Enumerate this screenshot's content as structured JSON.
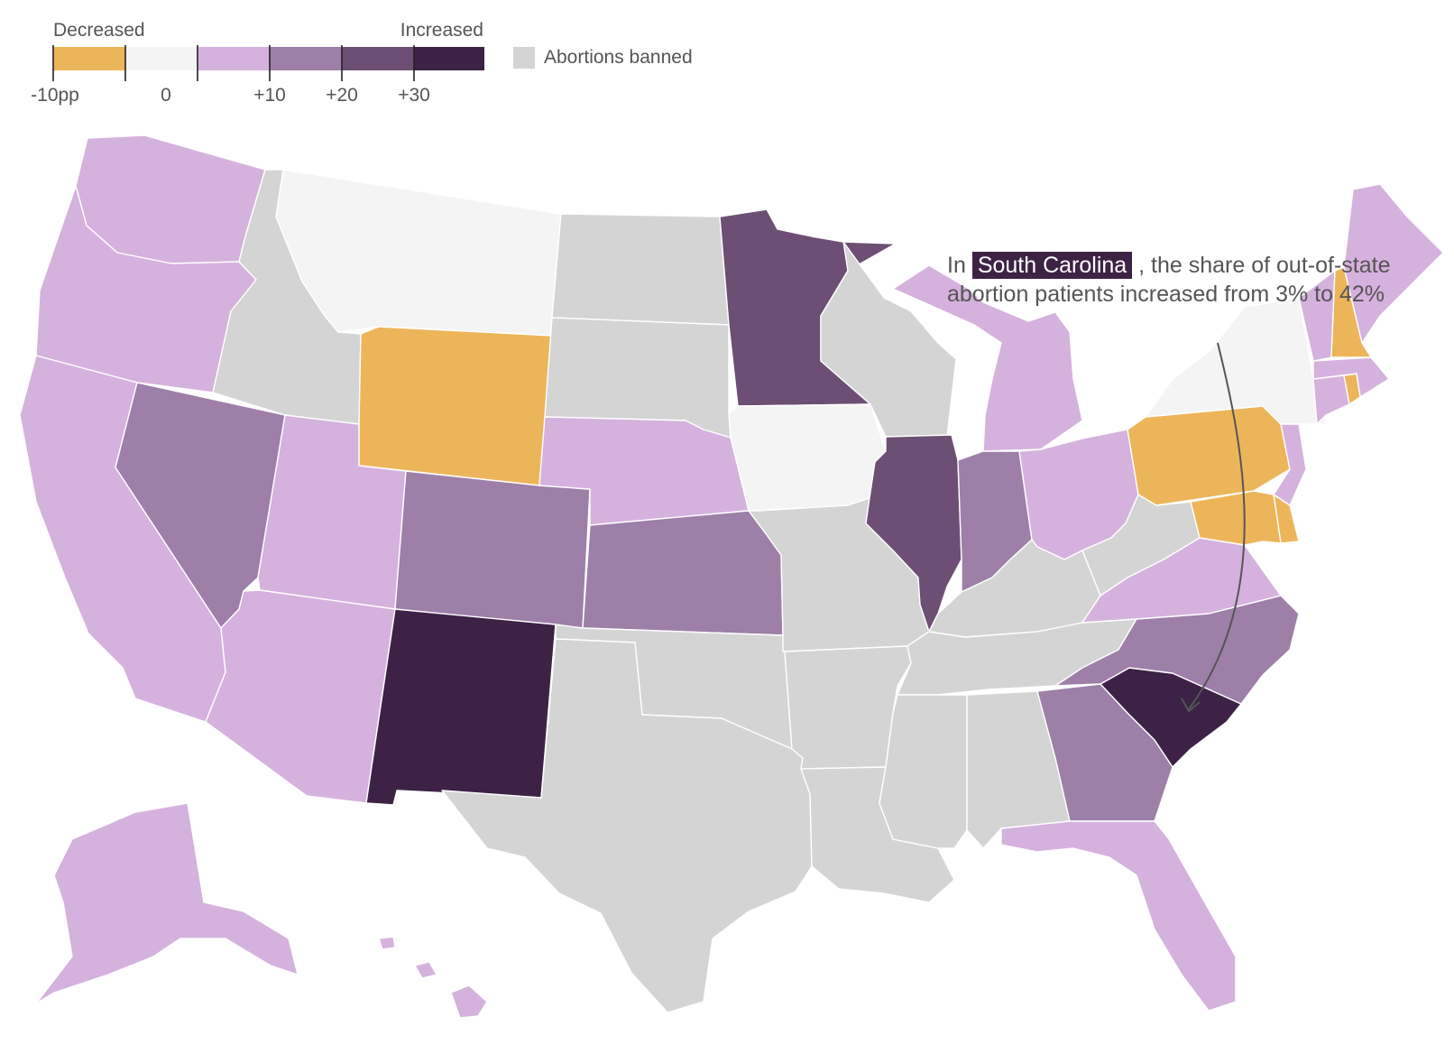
{
  "legend": {
    "decreased_label": "Decreased",
    "increased_label": "Increased",
    "ticks": [
      "-10pp",
      "0",
      "+10",
      "+20",
      "+30"
    ],
    "banned_label": "Abortions banned",
    "colors": [
      "#edb55a",
      "#f4f4f4",
      "#d5b1dd",
      "#9d7fa8",
      "#6d4e74",
      "#3d2246"
    ],
    "banned_color": "#d3d4d3"
  },
  "annotation": {
    "prefix": "In",
    "highlight": "South Carolina",
    "suffix": ", the share of out-of-state abortion patients increased from 3% to 42%"
  },
  "map_data": {
    "categories": {
      "decreased": "#edb55a",
      "no_change": "#f4f4f4",
      "plus10": "#d5b1dd",
      "plus20": "#9d7fa8",
      "plus30": "#6d4e74",
      "plus30_plus": "#3d2246",
      "banned": "#d3d4d3"
    },
    "states": {
      "WA": "plus10",
      "OR": "plus10",
      "CA": "plus10",
      "NV": "plus20",
      "ID": "banned",
      "MT": "no_change",
      "WY": "decreased",
      "UT": "plus10",
      "AZ": "plus10",
      "CO": "plus20",
      "NM": "plus30_plus",
      "ND": "banned",
      "SD": "banned",
      "NE": "plus10",
      "KS": "plus20",
      "OK": "banned",
      "TX": "banned",
      "MN": "plus30",
      "IA": "no_change",
      "MO": "banned",
      "AR": "banned",
      "LA": "banned",
      "WI": "banned",
      "IL": "plus30",
      "MI": "plus10",
      "IN": "plus20",
      "OH": "plus10",
      "KY": "banned",
      "TN": "banned",
      "MS": "banned",
      "AL": "banned",
      "GA": "plus20",
      "FL": "plus10",
      "SC": "plus30_plus",
      "NC": "plus20",
      "VA": "plus10",
      "WV": "banned",
      "PA": "decreased",
      "NY": "no_change",
      "NJ": "plus10",
      "DE": "decreased",
      "MD": "decreased",
      "CT": "plus10",
      "RI": "decreased",
      "MA": "plus10",
      "VT": "plus10",
      "NH": "decreased",
      "ME": "plus10",
      "AK": "plus10",
      "HI": "plus10"
    }
  }
}
